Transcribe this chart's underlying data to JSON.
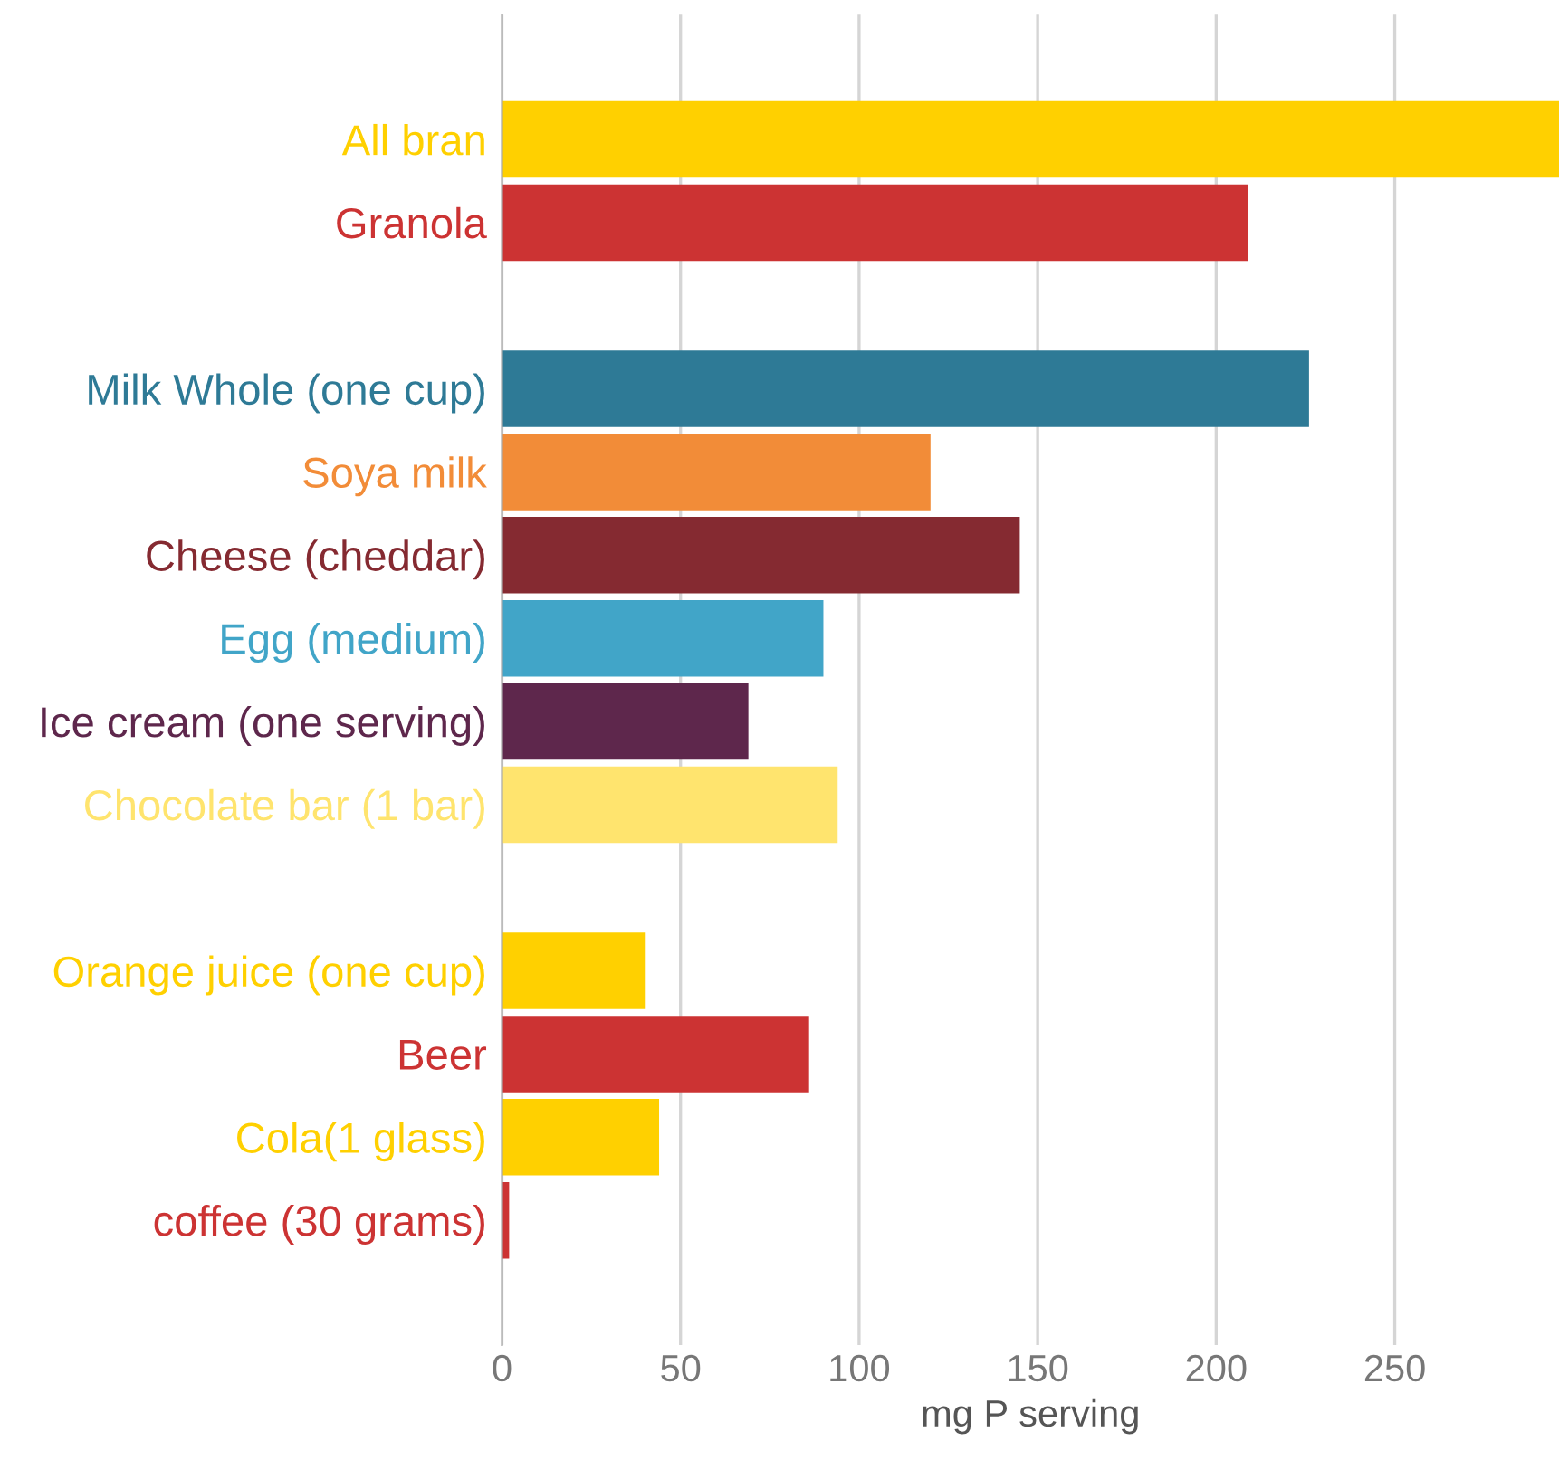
{
  "chart_data": {
    "type": "bar",
    "orientation": "horizontal",
    "xlabel": "mg P serving",
    "categories": [
      null,
      "All bran",
      "Granola",
      null,
      "Milk Whole (one cup)",
      "Soya milk",
      "Cheese (cheddar)",
      "Egg (medium)",
      "Ice cream (one serving)",
      "Chocolate bar (1 bar)",
      null,
      "Orange juice (one cup)",
      "Beer",
      "Cola(1 glass)",
      "coffee (30 grams)",
      null
    ],
    "values": [
      null,
      296,
      209,
      null,
      226,
      120,
      145,
      90,
      69,
      94,
      null,
      40,
      86,
      44,
      2,
      null
    ],
    "colors": [
      null,
      "#ffd000",
      "#cc3333",
      null,
      "#2e7a96",
      "#f28c38",
      "#852a31",
      "#41a5c8",
      "#5e274c",
      "#ffe46e",
      null,
      "#ffd000",
      "#cc3333",
      "#ffd000",
      "#cc3333",
      null
    ],
    "xlim": [
      0,
      296
    ],
    "xticks": [
      0,
      50,
      100,
      150,
      200,
      250
    ],
    "grid": "x"
  }
}
